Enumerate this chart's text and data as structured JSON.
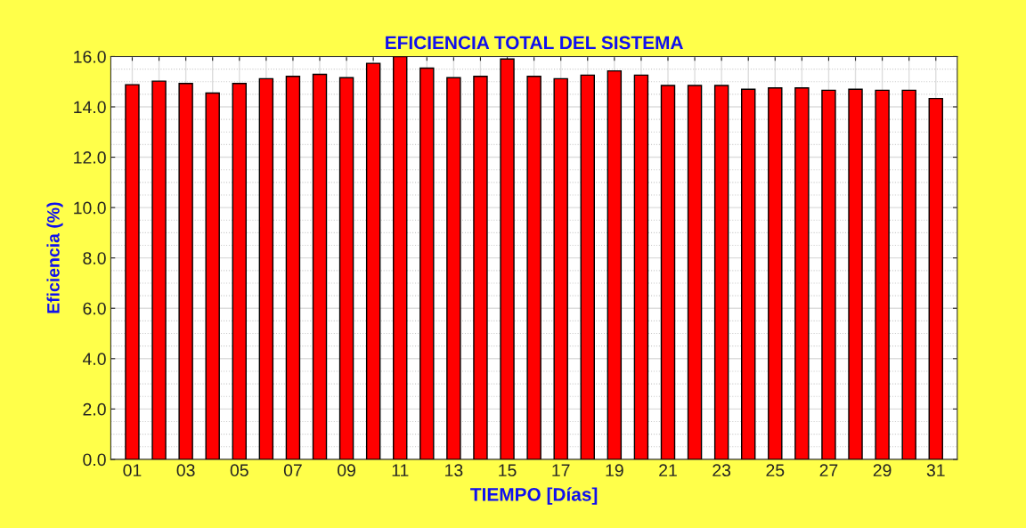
{
  "chart_data": {
    "type": "bar",
    "title": "EFICIENCIA TOTAL DEL SISTEMA",
    "xlabel": "TIEMPO [Días]",
    "ylabel": "Eficiencia (%)",
    "categories": [
      "01",
      null,
      "03",
      null,
      "05",
      null,
      "07",
      null,
      "09",
      null,
      "11",
      null,
      "13",
      null,
      "15",
      null,
      "17",
      null,
      "19",
      null,
      "21",
      null,
      "23",
      null,
      "25",
      null,
      "27",
      null,
      "29",
      null,
      "31"
    ],
    "values": [
      14.88,
      15.02,
      14.93,
      14.55,
      14.93,
      15.12,
      15.21,
      15.29,
      15.16,
      15.73,
      16.0,
      15.54,
      15.16,
      15.21,
      15.9,
      15.21,
      15.12,
      15.26,
      15.43,
      15.26,
      14.85,
      14.85,
      14.85,
      14.7,
      14.75,
      14.75,
      14.66,
      14.7,
      14.66,
      14.66,
      14.33
    ],
    "color": "#ff0000",
    "ylim": [
      0,
      16
    ],
    "yticks": [
      {
        "value": 0,
        "label": "0.0"
      },
      {
        "value": 2,
        "label": "2.0"
      },
      {
        "value": 4,
        "label": "4.0"
      },
      {
        "value": 6,
        "label": "6.0"
      },
      {
        "value": 8,
        "label": "8.0"
      },
      {
        "value": 10,
        "label": "10.0"
      },
      {
        "value": 12,
        "label": "12.0"
      },
      {
        "value": 14,
        "label": "14.0"
      },
      {
        "value": 16,
        "label": "16.0"
      }
    ],
    "grid": true
  }
}
